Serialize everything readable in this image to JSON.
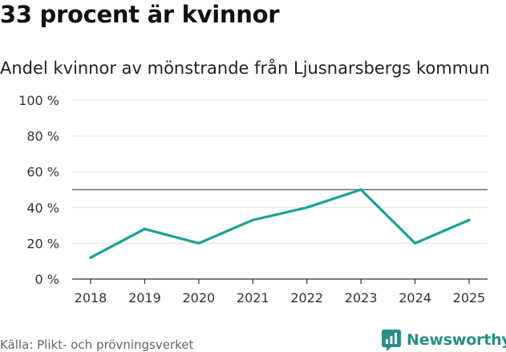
{
  "chart_data": {
    "type": "line",
    "title": "33 procent är kvinnor",
    "subtitle": "Andel kvinnor av mönstrande från Ljusnarsbergs kommun",
    "categories": [
      "2018",
      "2019",
      "2020",
      "2021",
      "2022",
      "2023",
      "2024",
      "2025"
    ],
    "series": [
      {
        "name": "Andel kvinnor",
        "values": [
          12,
          28,
          20,
          33,
          40,
          50,
          20,
          33
        ],
        "color": "#1aa295"
      }
    ],
    "reference_line": {
      "value": 50,
      "color": "#6b6b6b"
    },
    "ylim": [
      0,
      100
    ],
    "yticks": [
      0,
      20,
      40,
      60,
      80,
      100
    ],
    "ytick_labels": [
      "0 %",
      "20 %",
      "40 %",
      "60 %",
      "80 %",
      "100 %"
    ],
    "xlabel": "",
    "ylabel": "",
    "grid": true
  },
  "footer": {
    "source": "Källa: Plikt- och prövningsverket",
    "brand": "Newsworthy",
    "brand_color": "#2a8f86",
    "logo_icon": "newsworthy-logo-icon"
  }
}
